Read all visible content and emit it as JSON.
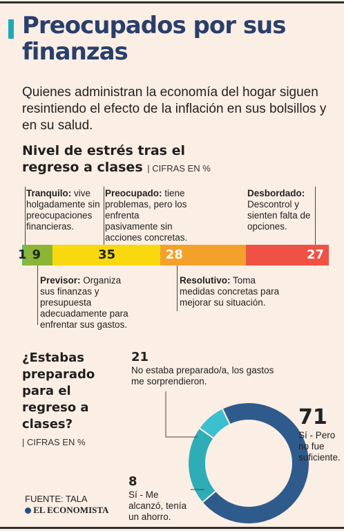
{
  "header": {
    "title": "Preocupados por sus finanzas",
    "subtitle": "Quienes administran la economía del hogar siguen resintiendo el efecto de la inflación en sus bolsillos y en su salud."
  },
  "section1": {
    "title": "Nivel de estrés tras el regreso a clases",
    "unit": "| CIFRAS EN %"
  },
  "categories": [
    {
      "label": "Tranquilo:",
      "desc": "vive holgadamente sin preocupaciones financieras."
    },
    {
      "label": "Previsor:",
      "desc": "Organiza sus finanzas y presupuesta adecuadamente para enfrentar sus gastos."
    },
    {
      "label": "Preocupado:",
      "desc": "tiene problemas, pero los enfrenta pasivamente sin acciones concretas."
    },
    {
      "label": "Resolutivo:",
      "desc": "Toma medidas concretas para mejorar su situación."
    },
    {
      "label": "Desbordado:",
      "desc": "Descontrol y sienten falta de opciones."
    }
  ],
  "section2": {
    "title": "¿Estabas preparado para el regreso a clases?",
    "unit": "| CIFRAS EN %"
  },
  "donut_labels": [
    {
      "value": "71",
      "text": "Sí - Pero no fue suficiente."
    },
    {
      "value": "21",
      "text": "No estaba preparado/a, los gastos me sorprendieron."
    },
    {
      "value": "8",
      "text": "Sí - Me alcanzó, tenía un ahorro."
    }
  ],
  "footer": {
    "source": "FUENTE: TALA",
    "logo": "EL ECONOMISTA"
  },
  "colors": {
    "title": "#2a3f6b",
    "accent": "#1eaab7",
    "tranquilo": "#6bbf5a",
    "previsor": "#8cb535",
    "preocupado": "#f8d90f",
    "resolutivo": "#f4a12c",
    "desbordado": "#ef5145",
    "donut_si_no_suficiente": "#2f5b8c",
    "donut_no_preparado": "#2eadb6",
    "donut_si_alcanzo": "#3cc0d0"
  },
  "chart_data": [
    {
      "type": "bar",
      "orientation": "horizontal-stacked",
      "title": "Nivel de estrés tras el regreso a clases",
      "unit": "CIFRAS EN %",
      "categories": [
        "Tranquilo",
        "Previsor",
        "Preocupado",
        "Resolutivo",
        "Desbordado"
      ],
      "values": [
        1,
        9,
        35,
        28,
        27
      ]
    },
    {
      "type": "pie",
      "variant": "donut",
      "title": "¿Estabas preparado para el regreso a clases?",
      "unit": "CIFRAS EN %",
      "categories": [
        "Sí - Pero no fue suficiente.",
        "No estaba preparado/a, los gastos me sorprendieron.",
        "Sí - Me alcanzó, tenía un ahorro."
      ],
      "values": [
        71,
        21,
        8
      ]
    }
  ]
}
